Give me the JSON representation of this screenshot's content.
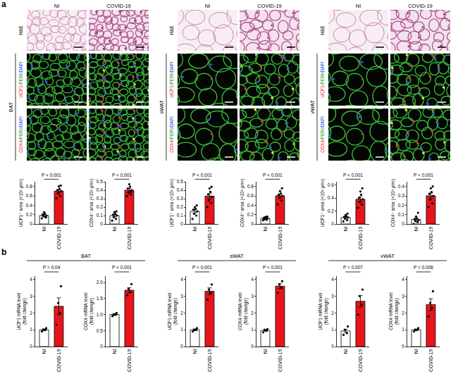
{
  "figure": {
    "panel_a": {
      "label": "a",
      "conditions": [
        "NI",
        "COVID-19"
      ],
      "rows": [
        "H&E",
        "UCP1/PERI/DAPI",
        "COX4/PERI/DAPI"
      ],
      "tissues": [
        "BAT",
        "sWAT",
        "vWAT"
      ]
    },
    "panel_b": {
      "label": "b",
      "tissues": [
        "BAT",
        "sWAT",
        "vWAT"
      ]
    }
  },
  "chart_data": [
    {
      "type": "bar",
      "y_label": [
        "UCP1⁺ area (×10³ µm²)"
      ],
      "categories": [
        "NI",
        "COVID-19"
      ],
      "colors": [
        "#ffffff",
        "#e8141c"
      ],
      "values": [
        0.18,
        0.7
      ],
      "errors": [
        0.03,
        0.035
      ],
      "points": [
        [
          0.12,
          0.15,
          0.17,
          0.18,
          0.2,
          0.22,
          0.25,
          0.14
        ],
        [
          0.55,
          0.6,
          0.65,
          0.7,
          0.72,
          0.75,
          0.8,
          0.82
        ]
      ],
      "ylim": [
        0,
        0.9
      ],
      "yticks": [
        0,
        0.2,
        0.4,
        0.6,
        0.8
      ],
      "p_value": "P < 0.001"
    },
    {
      "type": "bar",
      "y_label": [
        "COX4⁺ area (×10³ µm²)"
      ],
      "categories": [
        "NI",
        "COVID-19"
      ],
      "colors": [
        "#ffffff",
        "#e8141c"
      ],
      "values": [
        0.1,
        0.4
      ],
      "errors": [
        0.015,
        0.02
      ],
      "points": [
        [
          0.04,
          0.06,
          0.08,
          0.1,
          0.11,
          0.12,
          0.14,
          0.15
        ],
        [
          0.33,
          0.35,
          0.37,
          0.4,
          0.42,
          0.44,
          0.47,
          0.38
        ]
      ],
      "ylim": [
        0,
        0.5
      ],
      "yticks": [
        0,
        0.1,
        0.2,
        0.3,
        0.4,
        0.5
      ],
      "p_value": "P < 0.001"
    },
    {
      "type": "bar",
      "y_label": [
        "UCP1⁺ area (×10³ µm²)"
      ],
      "categories": [
        "NI",
        "COVID-19"
      ],
      "colors": [
        "#ffffff",
        "#e8141c"
      ],
      "values": [
        0.15,
        0.33
      ],
      "errors": [
        0.02,
        0.03
      ],
      "points": [
        [
          0.06,
          0.1,
          0.12,
          0.15,
          0.17,
          0.18,
          0.2,
          0.22
        ],
        [
          0.2,
          0.25,
          0.28,
          0.32,
          0.35,
          0.38,
          0.42,
          0.44
        ]
      ],
      "ylim": [
        0,
        0.5
      ],
      "yticks": [
        0,
        0.1,
        0.2,
        0.3,
        0.4,
        0.5
      ],
      "p_value": "P < 0.001"
    },
    {
      "type": "bar",
      "y_label": [
        "COX4⁺ area (×10³ µm²)"
      ],
      "categories": [
        "NI",
        "COVID-19"
      ],
      "colors": [
        "#ffffff",
        "#e8141c"
      ],
      "values": [
        0.12,
        0.6
      ],
      "errors": [
        0.01,
        0.04
      ],
      "points": [
        [
          0.08,
          0.09,
          0.1,
          0.12,
          0.13,
          0.14,
          0.15,
          0.16
        ],
        [
          0.42,
          0.5,
          0.55,
          0.6,
          0.62,
          0.65,
          0.7,
          0.76
        ]
      ],
      "ylim": [
        0,
        0.9
      ],
      "yticks": [
        0,
        0.2,
        0.4,
        0.6,
        0.8
      ],
      "p_value": "P < 0.001"
    },
    {
      "type": "bar",
      "y_label": [
        "UCP1⁺ area (×10³ µm²)"
      ],
      "categories": [
        "NI",
        "COVID-19"
      ],
      "colors": [
        "#ffffff",
        "#e8141c"
      ],
      "values": [
        0.1,
        0.38
      ],
      "errors": [
        0.015,
        0.04
      ],
      "points": [
        [
          0.04,
          0.06,
          0.08,
          0.1,
          0.11,
          0.12,
          0.14,
          0.16
        ],
        [
          0.25,
          0.3,
          0.34,
          0.38,
          0.4,
          0.45,
          0.5,
          0.55
        ]
      ],
      "ylim": [
        0,
        0.65
      ],
      "yticks": [
        0,
        0.2,
        0.4,
        0.6
      ],
      "p_value": "P < 0.001"
    },
    {
      "type": "bar",
      "y_label": [
        "COX4⁺ area (×10³ µm²)"
      ],
      "categories": [
        "NI",
        "COVID-19"
      ],
      "colors": [
        "#ffffff",
        "#e8141c"
      ],
      "values": [
        0.05,
        0.3
      ],
      "errors": [
        0.015,
        0.03
      ],
      "points": [
        [
          0.0,
          0.02,
          0.03,
          0.04,
          0.05,
          0.06,
          0.08,
          0.12
        ],
        [
          0.18,
          0.22,
          0.26,
          0.3,
          0.32,
          0.34,
          0.38,
          0.4
        ]
      ],
      "ylim": [
        0,
        0.45
      ],
      "yticks": [
        0,
        0.1,
        0.2,
        0.3,
        0.4
      ],
      "p_value": "P < 0.001"
    },
    {
      "type": "bar",
      "y_label": [
        "UCP1 mRNA level",
        "(fold change)"
      ],
      "categories": [
        "NI",
        "COVID-19"
      ],
      "colors": [
        "#ffffff",
        "#e8141c"
      ],
      "values": [
        1.0,
        2.4
      ],
      "errors": [
        0.05,
        0.5
      ],
      "points": [
        [
          0.9,
          1.0,
          1.0,
          1.1
        ],
        [
          1.3,
          2.0,
          2.6,
          3.6
        ]
      ],
      "ylim": [
        0,
        4.2
      ],
      "yticks": [
        0,
        1,
        2,
        3,
        4
      ],
      "p_value": "P = 0.04"
    },
    {
      "type": "bar",
      "y_label": [
        "COX4 mRNA level",
        "(fold change)"
      ],
      "categories": [
        "NI",
        "COVID-19"
      ],
      "colors": [
        "#ffffff",
        "#e8141c"
      ],
      "values": [
        1.0,
        1.76
      ],
      "errors": [
        0.03,
        0.08
      ],
      "points": [
        [
          0.95,
          1.0,
          1.0,
          1.05
        ],
        [
          1.6,
          1.7,
          1.8,
          1.95
        ]
      ],
      "ylim": [
        0,
        2.2
      ],
      "yticks": [
        0,
        0.5,
        {
          "value": 1,
          "label": "1.0"
        },
        1.5,
        {
          "value": 2,
          "label": "2.0"
        }
      ],
      "p_value": "P < 0.001"
    },
    {
      "type": "bar",
      "y_label": [
        "UCP1 mRNA level",
        "(fold change)"
      ],
      "categories": [
        "NI",
        "COVID-19"
      ],
      "colors": [
        "#ffffff",
        "#e8141c"
      ],
      "values": [
        1.0,
        3.3
      ],
      "errors": [
        0.05,
        0.2
      ],
      "points": [
        [
          0.9,
          1.0,
          1.0,
          1.1
        ],
        [
          2.8,
          3.2,
          3.4,
          3.7
        ]
      ],
      "ylim": [
        0,
        4.2
      ],
      "yticks": [
        0,
        1,
        2,
        3,
        4
      ],
      "p_value": "P < 0.001"
    },
    {
      "type": "bar",
      "y_label": [
        "COX4 mRNA level",
        "(fold change)"
      ],
      "categories": [
        "NI",
        "COVID-19"
      ],
      "colors": [
        "#ffffff",
        "#e8141c"
      ],
      "values": [
        0.96,
        3.6
      ],
      "errors": [
        0.05,
        0.15
      ],
      "points": [
        [
          0.85,
          0.95,
          1.0,
          1.05
        ],
        [
          3.2,
          3.5,
          3.7,
          3.9
        ]
      ],
      "ylim": [
        0,
        4.2
      ],
      "yticks": [
        0,
        1,
        2,
        3,
        4
      ],
      "p_value": "P < 0.001"
    },
    {
      "type": "bar",
      "y_label": [
        "UCP1 mRNA level",
        "(fold change)"
      ],
      "categories": [
        "NI",
        "COVID-19"
      ],
      "colors": [
        "#ffffff",
        "#e8141c"
      ],
      "values": [
        0.93,
        2.7
      ],
      "errors": [
        0.1,
        0.35
      ],
      "points": [
        [
          0.7,
          0.8,
          1.0,
          1.2
        ],
        [
          1.9,
          2.5,
          3.0,
          3.4
        ]
      ],
      "ylim": [
        0,
        4.2
      ],
      "yticks": [
        0,
        1,
        2,
        3,
        4
      ],
      "p_value": "P = 0.007"
    },
    {
      "type": "bar",
      "y_label": [
        "COX4 mRNA level",
        "(fold change)"
      ],
      "categories": [
        "NI",
        "COVID-19"
      ],
      "colors": [
        "#ffffff",
        "#e8141c"
      ],
      "values": [
        1.0,
        2.5
      ],
      "errors": [
        0.04,
        0.35
      ],
      "points": [
        [
          0.9,
          1.0,
          1.0,
          1.1
        ],
        [
          1.8,
          2.3,
          2.6,
          3.3
        ]
      ],
      "ylim": [
        0,
        4.2
      ],
      "yticks": [
        0,
        1,
        2,
        3,
        4
      ],
      "p_value": "P = 0.006"
    }
  ]
}
